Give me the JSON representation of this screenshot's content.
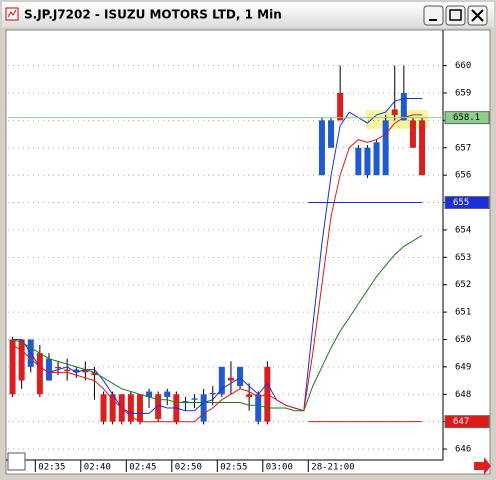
{
  "chart_data": {
    "type": "candlestick",
    "title": "S.JP.J7202 - ISUZU MOTORS LTD, 1 Min",
    "categories": [
      null,
      null,
      null,
      "02:35",
      null,
      null,
      null,
      null,
      "02:40",
      null,
      null,
      null,
      null,
      "02:45",
      null,
      null,
      null,
      null,
      "02:50",
      null,
      null,
      null,
      null,
      "02:55",
      null,
      null,
      null,
      null,
      "03:00",
      null,
      null,
      null,
      null,
      "28-21:00",
      null,
      null,
      null,
      null,
      null,
      null,
      null,
      null,
      null,
      null,
      null,
      null
    ],
    "open": [
      650,
      650,
      649,
      649.5,
      648.5,
      649,
      648.9,
      648.8,
      648.9,
      648.8,
      648,
      648,
      648,
      648,
      648,
      647.9,
      648,
      647.9,
      648,
      647.7,
      647.8,
      647,
      648,
      648,
      648.6,
      648.3,
      648,
      647,
      649,
      null,
      null,
      null,
      null,
      null,
      656,
      657,
      659,
      null,
      656,
      656,
      656,
      656,
      658.4,
      658,
      658,
      658
    ],
    "high": [
      650.1,
      650,
      650,
      649.8,
      649.5,
      649.2,
      649.3,
      649,
      649.2,
      649,
      648.1,
      648.1,
      648,
      648.1,
      648,
      648.2,
      648.1,
      648.2,
      648.1,
      647.9,
      648,
      648.2,
      648.3,
      649,
      649.2,
      649,
      648.4,
      648.1,
      649.2,
      null,
      null,
      null,
      null,
      null,
      658.1,
      658.1,
      660,
      null,
      657.1,
      657.1,
      657.3,
      658.2,
      660,
      660,
      658.1,
      658.1
    ],
    "low": [
      647.9,
      648.2,
      648.8,
      647.9,
      648.5,
      648.7,
      648.5,
      648.6,
      648.5,
      647.8,
      646.9,
      646.9,
      646.9,
      646.9,
      646.9,
      647.5,
      647,
      647.6,
      646.9,
      647.4,
      647.5,
      646.9,
      647.6,
      647.9,
      648,
      648.2,
      647.4,
      646.9,
      646.9,
      null,
      null,
      null,
      null,
      null,
      656,
      657,
      658,
      null,
      656,
      655.9,
      656,
      656,
      658,
      658,
      657,
      656
    ],
    "close": [
      648,
      648.5,
      650,
      648,
      649.3,
      648.95,
      648.85,
      648.9,
      648.8,
      648.7,
      647,
      647,
      647,
      647,
      647,
      648.1,
      647.1,
      648.1,
      647,
      647.75,
      647.85,
      648,
      648.05,
      649,
      648.5,
      649,
      647.9,
      648,
      647,
      null,
      null,
      null,
      null,
      null,
      658,
      658,
      658,
      null,
      657,
      657,
      657.2,
      658,
      658.2,
      659,
      657,
      656
    ],
    "up_color": "#1e5ad2",
    "down_color": "#dc1e1e",
    "series": [
      {
        "color": "#1a2fd8",
        "values": [
          650,
          650,
          649.5,
          649,
          648.8,
          648.9,
          649,
          648.8,
          648.9,
          648.9,
          648.5,
          648,
          647.5,
          647.3,
          647.3,
          647.3,
          647.6,
          647.5,
          647.5,
          647.4,
          647.4,
          647.7,
          647.8,
          648.2,
          648.4,
          648.6,
          648.3,
          648,
          648.4,
          647.8,
          647.6,
          647.5,
          647.4,
          650.5,
          653.5,
          656,
          657.8,
          658.3,
          658.1,
          657.9,
          658.2,
          658.3,
          658.7,
          658.8,
          658.8,
          658.8
        ]
      },
      {
        "color": "#e01818",
        "values": [
          649.8,
          649.6,
          649.3,
          649,
          648.8,
          648.8,
          648.8,
          648.7,
          648.6,
          648.5,
          648.2,
          647.8,
          647.5,
          647.2,
          647,
          647,
          647,
          647,
          647,
          647,
          647,
          647.3,
          647.5,
          647.8,
          648,
          648.2,
          648.1,
          647.9,
          648,
          647.8,
          647.6,
          647.5,
          647.4,
          649.5,
          652,
          654.5,
          656,
          657,
          657.3,
          657.2,
          657.3,
          657.5,
          657.9,
          658.1,
          658.2,
          658.2
        ]
      },
      {
        "color": "#1e7a1e",
        "values": [
          650,
          649.9,
          649.7,
          649.5,
          649.3,
          649.2,
          649.1,
          649,
          648.9,
          648.8,
          648.6,
          648.4,
          648.2,
          648.1,
          648,
          647.9,
          647.8,
          647.8,
          647.7,
          647.7,
          647.7,
          647.7,
          647.7,
          647.7,
          647.7,
          647.7,
          647.6,
          647.6,
          647.5,
          647.5,
          647.5,
          647.4,
          647.4,
          648.3,
          649,
          649.7,
          650.3,
          650.8,
          651.3,
          651.8,
          652.3,
          652.7,
          653.1,
          653.4,
          653.6,
          653.8
        ]
      }
    ],
    "hlines": [
      {
        "value": 658.1,
        "color": "#8ccf8c"
      },
      {
        "value": 655,
        "color": "#1a2fd8"
      },
      {
        "value": 647,
        "color": "#e01818"
      }
    ],
    "ylim": [
      645.6,
      661.3
    ],
    "yticks": [
      646,
      647,
      648,
      649,
      650,
      651,
      652,
      653,
      654,
      655,
      656,
      657,
      658,
      659,
      660
    ],
    "grid": true
  }
}
